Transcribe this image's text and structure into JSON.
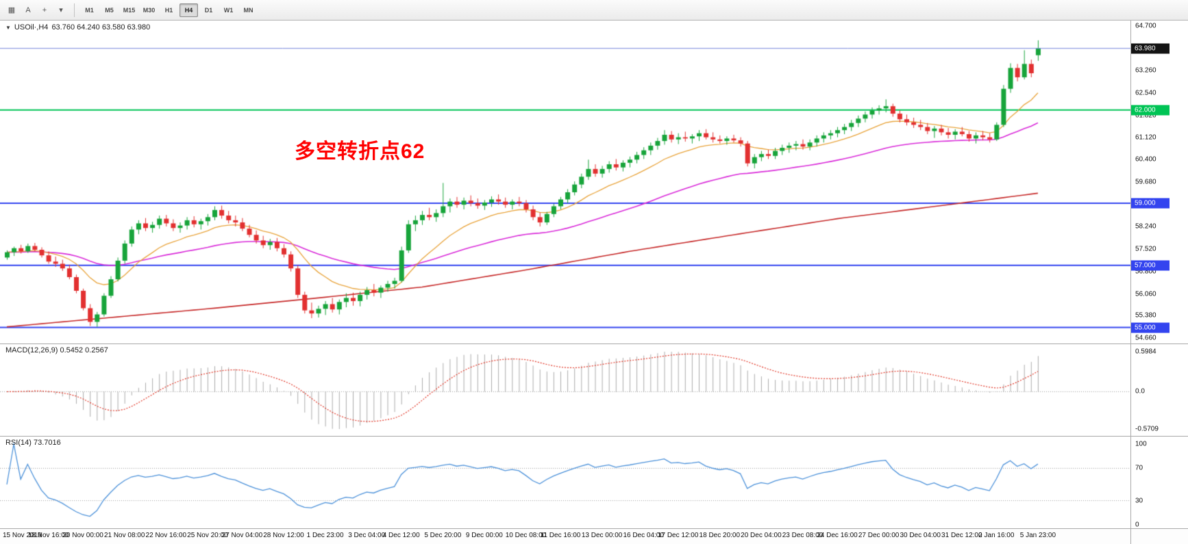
{
  "toolbar": {
    "icons": [
      {
        "name": "grid-icon",
        "glyph": "▦"
      },
      {
        "name": "text-tool-icon",
        "glyph": "A"
      },
      {
        "name": "crosshair-icon",
        "glyph": "+"
      },
      {
        "name": "style-dropdown-icon",
        "glyph": "▾"
      }
    ],
    "timeframes": [
      "M1",
      "M5",
      "M15",
      "M30",
      "H1",
      "H4",
      "D1",
      "W1",
      "MN"
    ],
    "active_timeframe": "H4"
  },
  "chart": {
    "collapse_icon": "▼",
    "symbol_label": "USOil·,H4",
    "ohlc": "63.760 64.240 63.580 63.980",
    "annotation": "多空转折点62",
    "annotation_color": "#ff0000"
  },
  "axis": {
    "price_labels": [
      "64.700",
      "63.260",
      "62.540",
      "61.820",
      "61.120",
      "60.400",
      "59.680",
      "58.240",
      "57.520",
      "56.800",
      "56.060",
      "55.380",
      "54.660"
    ],
    "badges": [
      {
        "value": "63.980",
        "color": "#141414"
      },
      {
        "value": "62.000",
        "color": "#00c455"
      },
      {
        "value": "59.000",
        "color": "#3344ef"
      },
      {
        "value": "57.000",
        "color": "#3344ef"
      },
      {
        "value": "55.000",
        "color": "#3344ef"
      }
    ]
  },
  "macd": {
    "label": "MACD(12,26,9) 0.5452 0.2567",
    "axis_labels": [
      "0.5984",
      "0.0",
      "-0.5709"
    ]
  },
  "rsi": {
    "label": "RSI(14) 73.7016",
    "axis_labels": [
      "100",
      "70",
      "30",
      "0"
    ]
  },
  "time_axis": {
    "labels": [
      "15 Nov 2019",
      "18 Nov 16:00",
      "20 Nov 00:00",
      "21 Nov 08:00",
      "22 Nov 16:00",
      "25 Nov 20:00",
      "27 Nov 04:00",
      "28 Nov 12:00",
      "1 Dec 23:00",
      "3 Dec 04:00",
      "4 Dec 12:00",
      "5 Dec 20:00",
      "9 Dec 00:00",
      "10 Dec 08:00",
      "11 Dec 16:00",
      "13 Dec 00:00",
      "16 Dec 04:00",
      "17 Dec 12:00",
      "18 Dec 20:00",
      "20 Dec 04:00",
      "23 Dec 08:00",
      "24 Dec 16:00",
      "27 Dec 00:00",
      "30 Dec 04:00",
      "31 Dec 12:00",
      "2 Jan 16:00",
      "5 Jan 23:00"
    ]
  },
  "chart_data": {
    "type": "candlestick",
    "symbol": "USOil",
    "timeframe": "H4",
    "current_bar": {
      "open": 63.76,
      "high": 64.24,
      "low": 63.58,
      "close": 63.98
    },
    "price_axis": {
      "max": 64.7,
      "min": 54.66
    },
    "colors": {
      "up": "#17a43a",
      "down": "#e23030",
      "ma_fast": "#e8a33a",
      "ma_mid": "#d92bd9",
      "ma_slow": "#c62828",
      "bid_line": "#7787da",
      "level_blue": "#3344ef",
      "level_green": "#00c455",
      "macd_hist": "#ababab",
      "macd_signal": "#e03020",
      "rsi_line": "#4a90d9"
    },
    "hlines": [
      {
        "price": 63.98,
        "color": "#7787da",
        "width": 1,
        "layer": "top"
      },
      {
        "price": 62.0,
        "color": "#00c455",
        "width": 2,
        "layer": "bottom"
      },
      {
        "price": 59.0,
        "color": "#3344ef",
        "width": 2,
        "layer": "bottom"
      },
      {
        "price": 57.0,
        "color": "#3344ef",
        "width": 2,
        "layer": "bottom"
      },
      {
        "price": 55.0,
        "color": "#3344ef",
        "width": 2,
        "layer": "bottom"
      }
    ],
    "overlays": {
      "ma_fast_period": 13,
      "ma_mid_period": 45,
      "ma_slow_anchors": [
        [
          0,
          55.02
        ],
        [
          15,
          55.32
        ],
        [
          30,
          55.62
        ],
        [
          45,
          55.95
        ],
        [
          60,
          56.3
        ],
        [
          75,
          56.85
        ],
        [
          90,
          57.45
        ],
        [
          105,
          57.98
        ],
        [
          120,
          58.5
        ],
        [
          135,
          58.92
        ],
        [
          149,
          59.32
        ]
      ]
    },
    "indicators": {
      "macd": {
        "fast": 12,
        "slow": 26,
        "signal": 9,
        "main_value": 0.5452,
        "signal_value": 0.2567
      },
      "rsi": {
        "period": 14,
        "value": 73.7016,
        "levels": [
          70,
          30
        ]
      }
    },
    "candles": [
      [
        57.25,
        57.48,
        57.18,
        57.42
      ],
      [
        57.42,
        57.6,
        57.3,
        57.55
      ],
      [
        57.55,
        57.66,
        57.38,
        57.45
      ],
      [
        57.45,
        57.7,
        57.4,
        57.62
      ],
      [
        57.62,
        57.72,
        57.45,
        57.5
      ],
      [
        57.5,
        57.58,
        57.25,
        57.32
      ],
      [
        57.32,
        57.45,
        57.05,
        57.12
      ],
      [
        57.12,
        57.28,
        56.95,
        57.05
      ],
      [
        57.05,
        57.18,
        56.82,
        56.9
      ],
      [
        56.9,
        57.02,
        56.55,
        56.62
      ],
      [
        56.62,
        56.7,
        56.1,
        56.18
      ],
      [
        56.18,
        56.25,
        55.55,
        55.62
      ],
      [
        55.62,
        55.75,
        55.05,
        55.18
      ],
      [
        55.18,
        55.5,
        55.02,
        55.42
      ],
      [
        55.42,
        56.1,
        55.35,
        56.02
      ],
      [
        56.02,
        56.65,
        55.95,
        56.55
      ],
      [
        56.55,
        57.25,
        56.48,
        57.15
      ],
      [
        57.15,
        57.8,
        57.05,
        57.7
      ],
      [
        57.7,
        58.25,
        57.6,
        58.15
      ],
      [
        58.15,
        58.45,
        58.0,
        58.35
      ],
      [
        58.35,
        58.52,
        58.1,
        58.2
      ],
      [
        58.2,
        58.4,
        58.05,
        58.3
      ],
      [
        58.3,
        58.6,
        58.18,
        58.5
      ],
      [
        58.5,
        58.62,
        58.25,
        58.35
      ],
      [
        58.35,
        58.48,
        58.1,
        58.2
      ],
      [
        58.2,
        58.38,
        58.05,
        58.28
      ],
      [
        58.28,
        58.55,
        58.15,
        58.45
      ],
      [
        58.45,
        58.58,
        58.22,
        58.32
      ],
      [
        58.32,
        58.5,
        58.15,
        58.42
      ],
      [
        58.42,
        58.65,
        58.28,
        58.55
      ],
      [
        58.55,
        58.9,
        58.45,
        58.78
      ],
      [
        58.78,
        58.92,
        58.5,
        58.6
      ],
      [
        58.6,
        58.75,
        58.35,
        58.45
      ],
      [
        58.45,
        58.6,
        58.25,
        58.38
      ],
      [
        58.38,
        58.52,
        58.1,
        58.18
      ],
      [
        58.18,
        58.3,
        57.9,
        57.98
      ],
      [
        57.98,
        58.12,
        57.7,
        57.8
      ],
      [
        57.8,
        57.95,
        57.55,
        57.65
      ],
      [
        57.65,
        57.85,
        57.5,
        57.75
      ],
      [
        57.75,
        57.88,
        57.45,
        57.55
      ],
      [
        57.55,
        57.68,
        57.25,
        57.35
      ],
      [
        57.35,
        57.45,
        56.8,
        56.9
      ],
      [
        56.9,
        57.0,
        55.95,
        56.05
      ],
      [
        56.05,
        56.15,
        55.45,
        55.55
      ],
      [
        55.55,
        55.8,
        55.3,
        55.45
      ],
      [
        55.45,
        55.7,
        55.32,
        55.6
      ],
      [
        55.6,
        55.85,
        55.4,
        55.75
      ],
      [
        55.75,
        55.95,
        55.48,
        55.58
      ],
      [
        55.58,
        55.9,
        55.42,
        55.82
      ],
      [
        55.82,
        56.1,
        55.65,
        55.95
      ],
      [
        55.95,
        56.12,
        55.7,
        55.85
      ],
      [
        55.85,
        56.15,
        55.68,
        56.05
      ],
      [
        56.05,
        56.3,
        55.9,
        56.2
      ],
      [
        56.2,
        56.4,
        56.0,
        56.12
      ],
      [
        56.12,
        56.35,
        55.95,
        56.28
      ],
      [
        56.28,
        56.5,
        56.15,
        56.4
      ],
      [
        56.4,
        56.6,
        56.25,
        56.5
      ],
      [
        56.5,
        57.6,
        56.45,
        57.48
      ],
      [
        57.48,
        58.45,
        57.4,
        58.32
      ],
      [
        58.32,
        58.6,
        58.1,
        58.45
      ],
      [
        58.45,
        58.75,
        58.3,
        58.62
      ],
      [
        58.62,
        58.85,
        58.45,
        58.55
      ],
      [
        58.55,
        58.8,
        58.4,
        58.68
      ],
      [
        58.68,
        59.65,
        58.55,
        58.9
      ],
      [
        58.9,
        59.15,
        58.7,
        59.05
      ],
      [
        59.05,
        59.2,
        58.85,
        58.95
      ],
      [
        58.95,
        59.18,
        58.8,
        59.08
      ],
      [
        59.08,
        59.25,
        58.9,
        59.0
      ],
      [
        59.0,
        59.15,
        58.82,
        58.92
      ],
      [
        58.92,
        59.1,
        58.78,
        59.02
      ],
      [
        59.02,
        59.22,
        58.88,
        59.12
      ],
      [
        59.12,
        59.28,
        58.95,
        59.05
      ],
      [
        59.05,
        59.18,
        58.85,
        58.95
      ],
      [
        58.95,
        59.12,
        58.8,
        59.05
      ],
      [
        59.05,
        59.2,
        58.9,
        59.0
      ],
      [
        59.0,
        59.1,
        58.7,
        58.8
      ],
      [
        58.8,
        58.92,
        58.45,
        58.55
      ],
      [
        58.55,
        58.7,
        58.25,
        58.38
      ],
      [
        58.38,
        58.72,
        58.3,
        58.65
      ],
      [
        58.65,
        58.98,
        58.55,
        58.9
      ],
      [
        58.9,
        59.2,
        58.8,
        59.12
      ],
      [
        59.12,
        59.45,
        59.0,
        59.35
      ],
      [
        59.35,
        59.7,
        59.25,
        59.6
      ],
      [
        59.6,
        59.95,
        59.48,
        59.85
      ],
      [
        59.85,
        60.4,
        59.75,
        60.1
      ],
      [
        60.1,
        60.25,
        59.85,
        59.95
      ],
      [
        59.95,
        60.2,
        59.82,
        60.1
      ],
      [
        60.1,
        60.35,
        59.98,
        60.25
      ],
      [
        60.25,
        60.42,
        60.05,
        60.15
      ],
      [
        60.15,
        60.38,
        60.02,
        60.3
      ],
      [
        60.3,
        60.5,
        60.15,
        60.4
      ],
      [
        60.4,
        60.65,
        60.28,
        60.55
      ],
      [
        60.55,
        60.8,
        60.42,
        60.7
      ],
      [
        60.7,
        60.95,
        60.55,
        60.85
      ],
      [
        60.85,
        61.1,
        60.72,
        61.0
      ],
      [
        61.0,
        61.35,
        60.88,
        61.2
      ],
      [
        61.2,
        61.32,
        60.95,
        61.05
      ],
      [
        61.05,
        61.25,
        60.9,
        61.12
      ],
      [
        61.12,
        61.3,
        60.98,
        61.08
      ],
      [
        61.08,
        61.22,
        60.92,
        61.15
      ],
      [
        61.15,
        61.35,
        61.0,
        61.25
      ],
      [
        61.25,
        61.38,
        61.05,
        61.12
      ],
      [
        61.12,
        61.28,
        60.95,
        61.05
      ],
      [
        61.05,
        61.18,
        60.92,
        61.0
      ],
      [
        61.0,
        61.15,
        60.88,
        61.08
      ],
      [
        61.08,
        61.2,
        60.95,
        61.02
      ],
      [
        61.02,
        61.12,
        60.82,
        60.92
      ],
      [
        60.92,
        61.0,
        60.18,
        60.28
      ],
      [
        60.28,
        60.58,
        60.12,
        60.48
      ],
      [
        60.48,
        60.68,
        60.35,
        60.58
      ],
      [
        60.58,
        60.72,
        60.42,
        60.52
      ],
      [
        60.52,
        60.78,
        60.42,
        60.68
      ],
      [
        60.68,
        60.88,
        60.55,
        60.78
      ],
      [
        60.78,
        60.95,
        60.62,
        60.85
      ],
      [
        60.85,
        61.0,
        60.7,
        60.9
      ],
      [
        60.9,
        61.05,
        60.72,
        60.82
      ],
      [
        60.82,
        61.05,
        60.7,
        60.95
      ],
      [
        60.95,
        61.18,
        60.82,
        61.08
      ],
      [
        61.08,
        61.28,
        60.95,
        61.18
      ],
      [
        61.18,
        61.35,
        61.05,
        61.25
      ],
      [
        61.25,
        61.45,
        61.12,
        61.35
      ],
      [
        61.35,
        61.55,
        61.22,
        61.45
      ],
      [
        61.45,
        61.68,
        61.32,
        61.58
      ],
      [
        61.58,
        61.82,
        61.45,
        61.72
      ],
      [
        61.72,
        61.95,
        61.6,
        61.85
      ],
      [
        61.85,
        62.08,
        61.72,
        61.98
      ],
      [
        61.98,
        62.15,
        61.85,
        62.05
      ],
      [
        62.05,
        62.34,
        61.92,
        62.12
      ],
      [
        62.12,
        62.2,
        61.78,
        61.88
      ],
      [
        61.88,
        61.98,
        61.6,
        61.7
      ],
      [
        61.7,
        61.85,
        61.5,
        61.6
      ],
      [
        61.6,
        61.75,
        61.42,
        61.52
      ],
      [
        61.52,
        61.68,
        61.35,
        61.45
      ],
      [
        61.45,
        61.58,
        61.22,
        61.32
      ],
      [
        61.32,
        61.48,
        61.1,
        61.4
      ],
      [
        61.4,
        61.52,
        61.18,
        61.28
      ],
      [
        61.28,
        61.42,
        61.08,
        61.2
      ],
      [
        61.2,
        61.38,
        61.05,
        61.3
      ],
      [
        61.3,
        61.45,
        61.15,
        61.22
      ],
      [
        61.22,
        61.32,
        60.98,
        61.08
      ],
      [
        61.08,
        61.28,
        60.92,
        61.18
      ],
      [
        61.18,
        61.32,
        61.02,
        61.12
      ],
      [
        61.12,
        61.25,
        60.95,
        61.05
      ],
      [
        61.05,
        61.6,
        61.0,
        61.52
      ],
      [
        61.52,
        62.8,
        61.45,
        62.68
      ],
      [
        62.68,
        63.5,
        62.55,
        63.35
      ],
      [
        63.35,
        63.48,
        62.92,
        63.05
      ],
      [
        63.05,
        63.92,
        62.98,
        63.48
      ],
      [
        63.48,
        63.62,
        63.05,
        63.18
      ],
      [
        63.76,
        64.24,
        63.58,
        63.98
      ]
    ]
  }
}
